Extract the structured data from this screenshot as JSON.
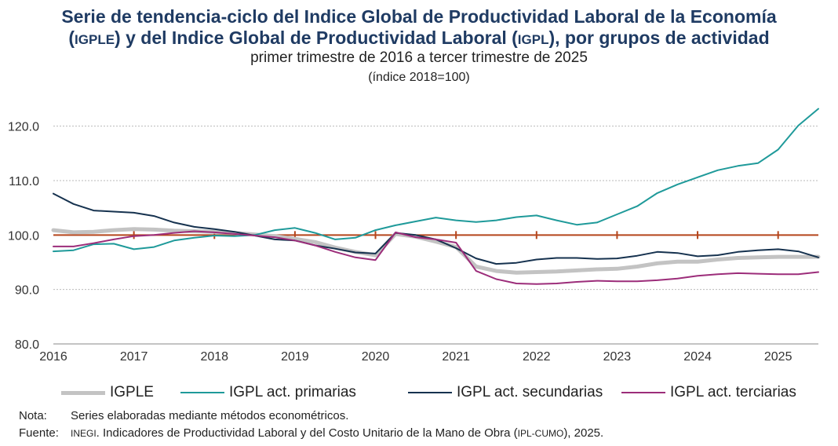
{
  "header": {
    "title_line1": "Serie de tendencia-ciclo del Indice Global de Productividad Laboral de la Economía",
    "title_line2_pre": "(",
    "title_line2_abbr1": "IGPLE",
    "title_line2_mid": ") y del Indice Global de Productividad Laboral (",
    "title_line2_abbr2": "IGPL",
    "title_line2_post": "), por grupos de actividad",
    "subtitle_line1": "primer trimestre de 2016 a tercer trimestre de 2025",
    "subtitle_line2": "(índice 2018=100)"
  },
  "notes": {
    "note_label": "Nota:",
    "note_text": "Series elaboradas mediante métodos econométricos.",
    "source_label": "Fuente:",
    "source_abbr1": "INEGI",
    "source_text_mid": ". Indicadores de Productividad Laboral y del Costo Unitario de la Mano de Obra (",
    "source_abbr2": "IPL-CUMO",
    "source_text_post": "), 2025."
  },
  "chart_data": {
    "type": "line",
    "ylim": [
      80,
      125
    ],
    "yticks": [
      80,
      90,
      100,
      110,
      120
    ],
    "ytick_labels": [
      "80.0",
      "90.0",
      "100.0",
      "110.0",
      "120.0"
    ],
    "xlim": [
      0,
      38
    ],
    "xticks": [
      0,
      4,
      8,
      12,
      16,
      20,
      24,
      28,
      32,
      36
    ],
    "xtick_labels": [
      "2016",
      "2017",
      "2018",
      "2019",
      "2020",
      "2021",
      "2022",
      "2023",
      "2024",
      "2025"
    ],
    "reference_line": {
      "value": 100,
      "color": "#b5451b"
    },
    "grid": "horizontal",
    "legend_position": "bottom",
    "series": [
      {
        "name": "IGPLE",
        "color": "#c3c3c3",
        "width": 5,
        "values": [
          100.9,
          100.5,
          100.6,
          100.9,
          101.1,
          101.0,
          100.8,
          100.7,
          100.6,
          100.4,
          100.1,
          99.8,
          99.3,
          98.7,
          97.7,
          96.9,
          96.3,
          100.2,
          99.7,
          98.8,
          97.8,
          94.2,
          93.4,
          93.1,
          93.2,
          93.3,
          93.5,
          93.7,
          93.8,
          94.2,
          94.8,
          95.1,
          95.1,
          95.5,
          95.8,
          95.9,
          96.0,
          96.0,
          96.0
        ]
      },
      {
        "name": "IGPL act. primarias",
        "color": "#1f9a9a",
        "width": 2,
        "values": [
          97.0,
          97.2,
          98.3,
          98.4,
          97.4,
          97.8,
          99.0,
          99.5,
          99.9,
          99.8,
          100.0,
          100.9,
          101.3,
          100.4,
          99.2,
          99.5,
          100.9,
          101.8,
          102.5,
          103.2,
          102.7,
          102.4,
          102.7,
          103.3,
          103.6,
          102.7,
          101.9,
          102.3,
          103.8,
          105.3,
          107.7,
          109.3,
          110.6,
          111.9,
          112.7,
          113.2,
          115.7,
          120.1,
          123.2
        ]
      },
      {
        "name": "IGPL act. secundarias",
        "color": "#16324f",
        "width": 2,
        "values": [
          107.6,
          105.7,
          104.5,
          104.3,
          104.1,
          103.5,
          102.3,
          101.5,
          101.1,
          100.6,
          99.9,
          99.2,
          99.0,
          98.1,
          97.5,
          96.8,
          96.6,
          100.4,
          100.0,
          99.2,
          97.6,
          95.7,
          94.7,
          94.9,
          95.5,
          95.8,
          95.8,
          95.6,
          95.7,
          96.2,
          96.9,
          96.7,
          96.1,
          96.3,
          96.9,
          97.2,
          97.4,
          97.0,
          95.9
        ]
      },
      {
        "name": "IGPL act. terciarias",
        "color": "#9c2d7a",
        "width": 2,
        "values": [
          97.9,
          97.9,
          98.5,
          99.2,
          99.8,
          100.0,
          100.4,
          100.7,
          100.5,
          100.2,
          99.9,
          99.6,
          99.0,
          98.1,
          96.9,
          95.9,
          95.4,
          100.5,
          99.6,
          99.2,
          98.6,
          93.4,
          91.9,
          91.1,
          91.0,
          91.1,
          91.4,
          91.6,
          91.5,
          91.5,
          91.7,
          92.0,
          92.5,
          92.8,
          93.0,
          92.9,
          92.8,
          92.8,
          93.2
        ]
      }
    ]
  }
}
